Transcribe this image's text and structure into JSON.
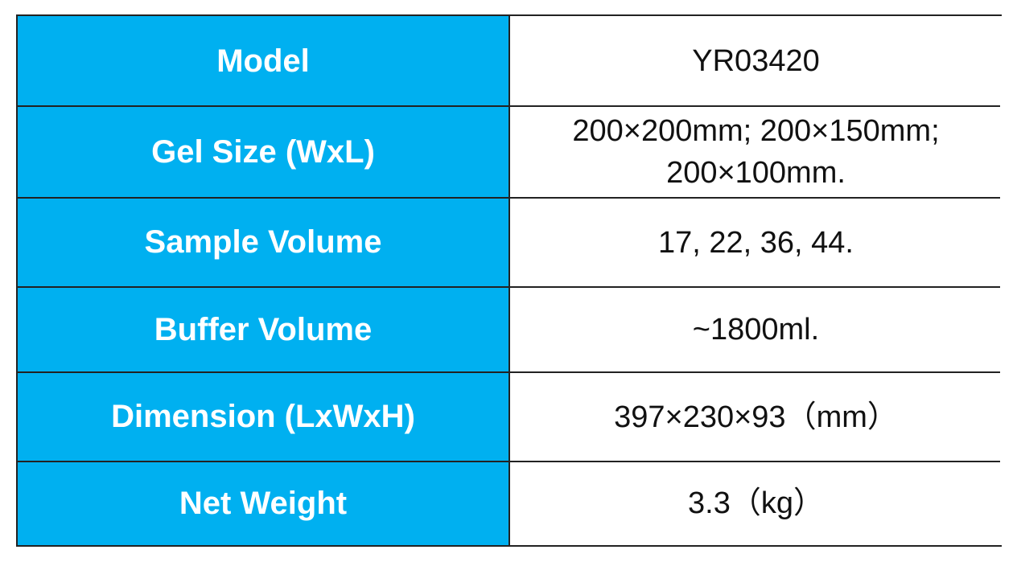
{
  "table": {
    "rows": [
      [
        "Model",
        "YR03420"
      ],
      [
        "Gel Size (WxL)",
        "200×200mm; 200×150mm; 200×100mm."
      ],
      [
        "Sample Volume",
        "17, 22, 36, 44."
      ],
      [
        "Buffer Volume",
        "~1800ml."
      ],
      [
        "Dimension (LxWxH)",
        "397×230×93（mm）"
      ],
      [
        "Net Weight",
        "3.3（kg）"
      ]
    ]
  }
}
